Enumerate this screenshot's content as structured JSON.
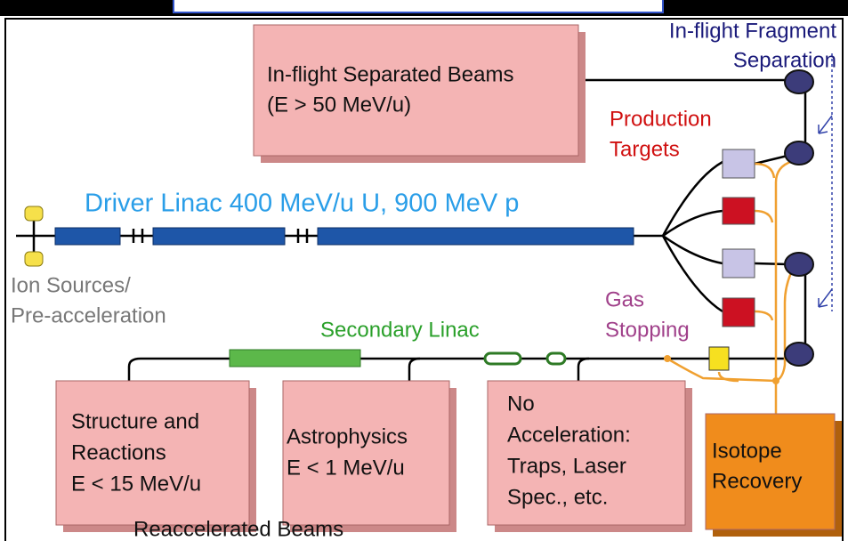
{
  "labels": {
    "fragment_separation": [
      "In-flight Fragment",
      "Separation"
    ],
    "production_targets": [
      "Production",
      "Targets"
    ],
    "driver_linac": "Driver Linac 400 MeV/u U, 900 MeV p",
    "ion_sources": [
      "Ion Sources/",
      "Pre-acceleration"
    ],
    "gas_stopping": [
      "Gas",
      "Stopping"
    ],
    "secondary_linac": "Secondary Linac",
    "reaccelerated_beams": "Reaccelerated Beams"
  },
  "boxes": [
    {
      "id": "inflight",
      "lines": [
        "In-flight Separated Beams",
        "(E > 50 MeV/u)"
      ]
    },
    {
      "id": "structure",
      "lines": [
        "Structure and",
        "Reactions",
        "E < 15 MeV/u"
      ]
    },
    {
      "id": "astro",
      "lines": [
        "Astrophysics",
        "E < 1 MeV/u"
      ]
    },
    {
      "id": "noacc",
      "lines": [
        "No",
        "Acceleration:",
        "Traps, Laser",
        "Spec., etc."
      ]
    },
    {
      "id": "isotope",
      "lines": [
        "Isotope",
        "Recovery"
      ]
    }
  ]
}
